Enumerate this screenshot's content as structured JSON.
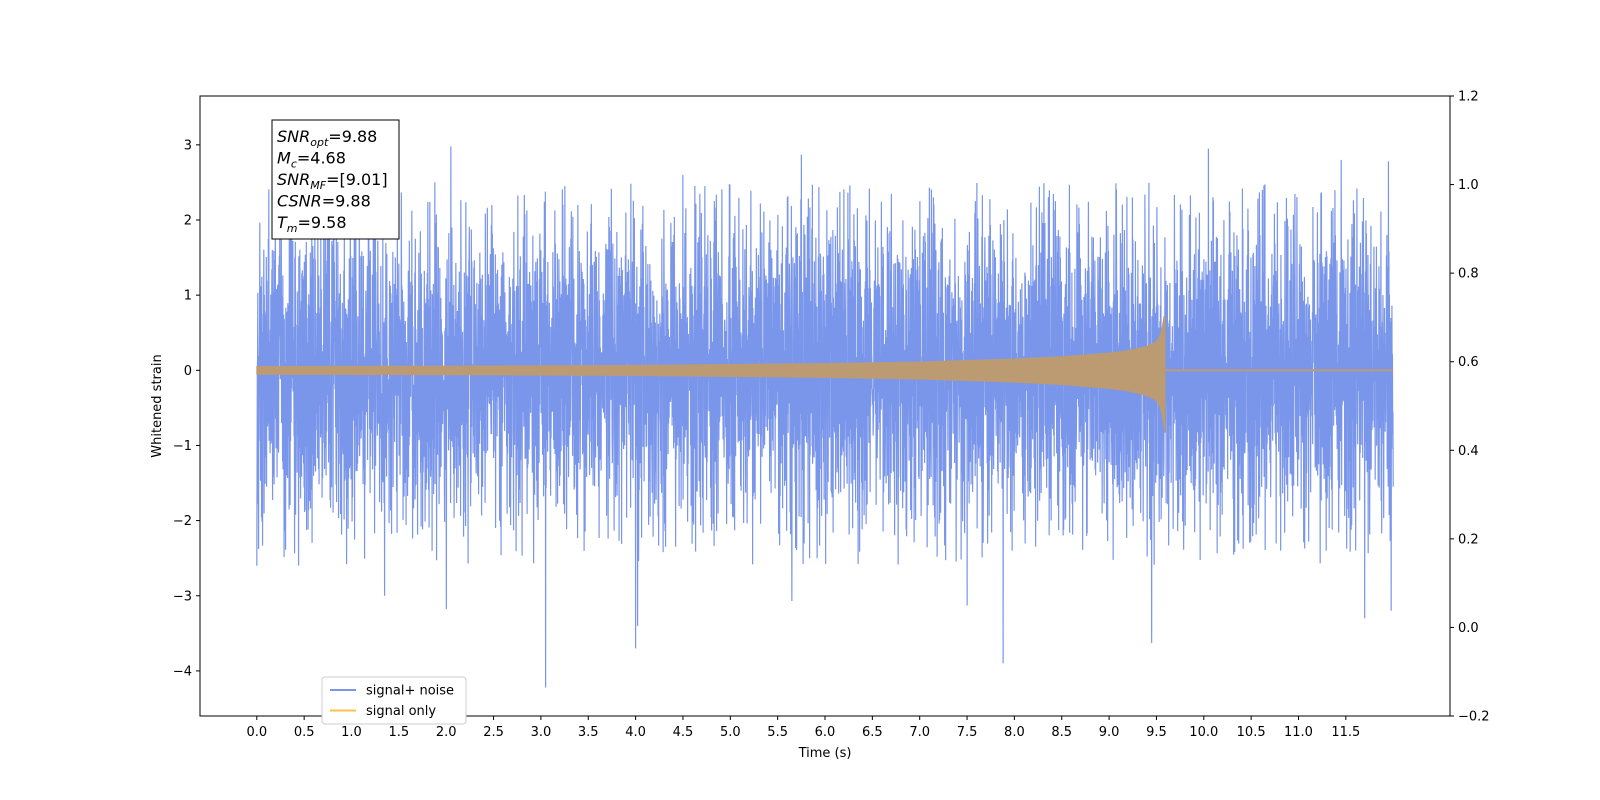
{
  "chart_data": {
    "type": "line",
    "xlabel": "Time (s)",
    "ylabel": "Whitened strain",
    "xlim": [
      -0.6,
      12.6
    ],
    "ylim": [
      -4.6,
      3.65
    ],
    "ylim_right": [
      -0.2,
      1.2
    ],
    "x_ticks": [
      0.0,
      0.5,
      1.0,
      1.5,
      2.0,
      2.5,
      3.0,
      3.5,
      4.0,
      4.5,
      5.0,
      5.5,
      6.0,
      6.5,
      7.0,
      7.5,
      8.0,
      8.5,
      9.0,
      9.5,
      10.0,
      10.5,
      11.0,
      11.5
    ],
    "x_tick_labels": [
      "0.0",
      "0.5",
      "1.0",
      "1.5",
      "2.0",
      "2.5",
      "3.0",
      "3.5",
      "4.0",
      "4.5",
      "5.0",
      "5.5",
      "6.0",
      "6.5",
      "7.0",
      "7.5",
      "8.0",
      "8.5",
      "9.0",
      "9.5",
      "10.0",
      "10.5",
      "11.0",
      "11.5"
    ],
    "y_ticks": [
      -4,
      -3,
      -2,
      -1,
      0,
      1,
      2,
      3
    ],
    "y_tick_labels": [
      "−4",
      "−3",
      "−2",
      "−1",
      "0",
      "1",
      "2",
      "3"
    ],
    "y_ticks_right": [
      -0.2,
      0.0,
      0.2,
      0.4,
      0.6,
      0.8,
      1.0,
      1.2
    ],
    "y_tick_labels_right": [
      "−0.2",
      "0.0",
      "0.2",
      "0.4",
      "0.6",
      "0.8",
      "1.0",
      "1.2"
    ],
    "time_range": [
      0.0,
      12.0
    ],
    "noise": {
      "typical_envelope": [
        -2.0,
        2.2
      ],
      "peaks_positive": [
        [
          0.0,
          2.55
        ],
        [
          2.05,
          2.98
        ],
        [
          4.5,
          2.6
        ],
        [
          5.75,
          2.87
        ],
        [
          10.05,
          2.95
        ],
        [
          11.45,
          2.8
        ],
        [
          11.95,
          2.78
        ]
      ],
      "peaks_negative": [
        [
          0.0,
          -2.6
        ],
        [
          1.35,
          -3.0
        ],
        [
          2.0,
          -3.18
        ],
        [
          3.05,
          -4.22
        ],
        [
          4.0,
          -3.7
        ],
        [
          4.02,
          -3.4
        ],
        [
          5.65,
          -3.07
        ],
        [
          7.5,
          -3.13
        ],
        [
          7.88,
          -3.9
        ],
        [
          9.45,
          -3.63
        ],
        [
          11.7,
          -3.3
        ],
        [
          11.98,
          -3.2
        ]
      ]
    },
    "signal_envelope": {
      "t": [
        0.0,
        2.0,
        4.0,
        6.0,
        7.0,
        8.0,
        8.5,
        9.0,
        9.2,
        9.4,
        9.5,
        9.55,
        9.58
      ],
      "amplitude": [
        0.05,
        0.055,
        0.065,
        0.09,
        0.11,
        0.15,
        0.18,
        0.23,
        0.26,
        0.32,
        0.38,
        0.48,
        0.72
      ],
      "merger_time": 9.58,
      "merger_peak": [
        0.72,
        -0.83
      ]
    },
    "legend_placement": "lower-left",
    "series": [
      {
        "name": "signal+ noise",
        "color": "#4169e1"
      },
      {
        "name": "signal only",
        "color": "#ffa500"
      }
    ],
    "annotation": {
      "lines": [
        {
          "main": "SNR",
          "sub": "opt",
          "value": "=9.88"
        },
        {
          "main": "M",
          "sub": "c",
          "value": "=4.68"
        },
        {
          "main": "SNR",
          "sub": "MF",
          "value": "=[9.01]"
        },
        {
          "main": "CSNR",
          "sub": "",
          "value": "=9.88"
        },
        {
          "main": "T",
          "sub": "m",
          "value": "=9.58"
        }
      ]
    }
  }
}
